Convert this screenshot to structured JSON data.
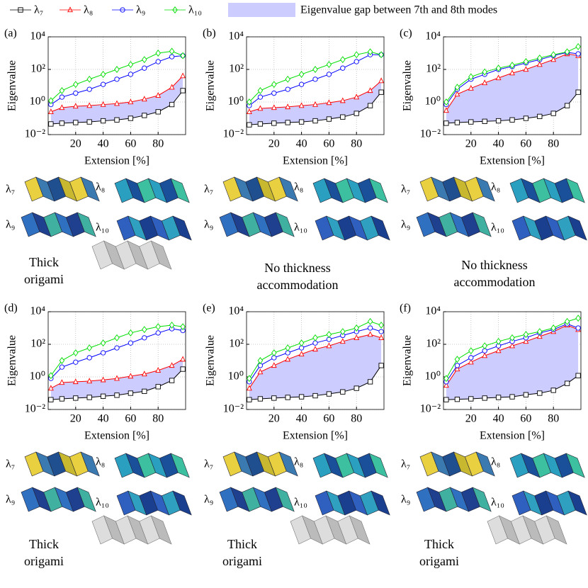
{
  "legend": {
    "gap_label": "Eigenvalue gap between 7th and 8th modes",
    "fill_color": "#ccccff"
  },
  "chart_data": [
    {
      "type": "line",
      "label": "(a)",
      "xlabel": "Extension [%]",
      "ylabel": "Eigenvalue",
      "log_y": true,
      "grid": true,
      "x": [
        2,
        10,
        20,
        30,
        40,
        50,
        60,
        70,
        80,
        90,
        98
      ],
      "xlim": [
        0,
        100
      ],
      "xticks": [
        20,
        40,
        60,
        80
      ],
      "ylim": [
        0.01,
        10000
      ],
      "yticks": [
        {
          "value": 0.01,
          "label": "10⁻²"
        },
        {
          "value": 1,
          "label": "10⁰"
        },
        {
          "value": 100,
          "label": "10²"
        },
        {
          "value": 10000,
          "label": "10⁴"
        }
      ],
      "series": [
        {
          "name": "λ₇",
          "color": "#000000",
          "marker": "square",
          "values": [
            0.045,
            0.05,
            0.055,
            0.06,
            0.07,
            0.08,
            0.1,
            0.15,
            0.25,
            0.7,
            5
          ]
        },
        {
          "name": "λ₈",
          "color": "#ff0000",
          "marker": "triangle",
          "values": [
            0.25,
            0.45,
            0.55,
            0.6,
            0.7,
            0.8,
            1,
            1.5,
            2.5,
            8,
            40
          ]
        },
        {
          "name": "λ₉",
          "color": "#0000ff",
          "marker": "circle",
          "values": [
            0.7,
            2,
            3.5,
            6,
            12,
            25,
            50,
            120,
            300,
            600,
            700
          ]
        },
        {
          "name": "λ₁₀",
          "color": "#00dd00",
          "marker": "diamond",
          "values": [
            1.2,
            5,
            12,
            25,
            50,
            100,
            200,
            400,
            1000,
            1300,
            700
          ]
        }
      ],
      "mode_labels": [
        "λ₇",
        "λ₈",
        "λ₉",
        "λ₁₀"
      ],
      "caption": [
        "Thick",
        "origami"
      ]
    },
    {
      "type": "line",
      "label": "(b)",
      "xlabel": "Extension [%]",
      "ylabel": "Eigenvalue",
      "log_y": true,
      "grid": true,
      "x": [
        2,
        10,
        20,
        30,
        40,
        50,
        60,
        70,
        80,
        90,
        98
      ],
      "xlim": [
        0,
        100
      ],
      "xticks": [
        20,
        40,
        60,
        80
      ],
      "ylim": [
        0.01,
        10000
      ],
      "yticks": [
        {
          "value": 0.01,
          "label": "10⁻²"
        },
        {
          "value": 1,
          "label": "10⁰"
        },
        {
          "value": 100,
          "label": "10²"
        },
        {
          "value": 10000,
          "label": "10⁴"
        }
      ],
      "series": [
        {
          "name": "λ₇",
          "color": "#000000",
          "marker": "square",
          "values": [
            0.04,
            0.045,
            0.05,
            0.055,
            0.06,
            0.07,
            0.09,
            0.12,
            0.2,
            0.6,
            4
          ]
        },
        {
          "name": "λ₈",
          "color": "#ff0000",
          "marker": "triangle",
          "values": [
            0.25,
            0.4,
            0.45,
            0.5,
            0.6,
            0.7,
            0.9,
            1.2,
            2,
            5,
            20
          ]
        },
        {
          "name": "λ₉",
          "color": "#0000ff",
          "marker": "circle",
          "values": [
            0.6,
            2,
            3.5,
            6,
            12,
            25,
            50,
            120,
            300,
            800,
            800
          ]
        },
        {
          "name": "λ₁₀",
          "color": "#00dd00",
          "marker": "diamond",
          "values": [
            1,
            5,
            12,
            25,
            50,
            100,
            200,
            400,
            800,
            1200,
            800
          ]
        }
      ],
      "mode_labels": [
        "λ₇",
        "λ₈",
        "λ₉",
        "λ₁₀"
      ],
      "caption": [
        "No thickness",
        "accommodation"
      ]
    },
    {
      "type": "line",
      "label": "(c)",
      "xlabel": "Extension [%]",
      "ylabel": "Eigenvalue",
      "log_y": true,
      "grid": true,
      "x": [
        2,
        10,
        20,
        30,
        40,
        50,
        60,
        70,
        80,
        90,
        98
      ],
      "xlim": [
        0,
        100
      ],
      "xticks": [
        20,
        40,
        60,
        80
      ],
      "ylim": [
        0.01,
        10000
      ],
      "yticks": [
        {
          "value": 0.01,
          "label": "10⁻²"
        },
        {
          "value": 1,
          "label": "10⁰"
        },
        {
          "value": 100,
          "label": "10²"
        },
        {
          "value": 10000,
          "label": "10⁴"
        }
      ],
      "series": [
        {
          "name": "λ₇",
          "color": "#000000",
          "marker": "square",
          "values": [
            0.05,
            0.055,
            0.06,
            0.065,
            0.07,
            0.08,
            0.1,
            0.13,
            0.2,
            0.6,
            4
          ]
        },
        {
          "name": "λ₈",
          "color": "#ff0000",
          "marker": "triangle",
          "values": [
            0.3,
            3,
            7,
            15,
            30,
            60,
            100,
            200,
            400,
            900,
            700
          ]
        },
        {
          "name": "λ₉",
          "color": "#0000ff",
          "marker": "circle",
          "values": [
            0.7,
            6,
            25,
            50,
            100,
            150,
            250,
            400,
            700,
            1100,
            900
          ]
        },
        {
          "name": "λ₁₀",
          "color": "#00dd00",
          "marker": "diamond",
          "values": [
            1,
            8,
            35,
            70,
            120,
            180,
            300,
            500,
            800,
            1200,
            2500
          ]
        }
      ],
      "mode_labels": [
        "λ₇",
        "λ₈",
        "λ₉",
        "λ₁₀"
      ],
      "caption": [
        "No thickness",
        "accommodation"
      ]
    },
    {
      "type": "line",
      "label": "(d)",
      "xlabel": "Extension [%]",
      "ylabel": "Eigenvalue",
      "log_y": true,
      "grid": true,
      "x": [
        2,
        10,
        20,
        30,
        40,
        50,
        60,
        70,
        80,
        90,
        98
      ],
      "xlim": [
        0,
        100
      ],
      "xticks": [
        20,
        40,
        60,
        80
      ],
      "ylim": [
        0.01,
        10000
      ],
      "yticks": [
        {
          "value": 0.01,
          "label": "10⁻²"
        },
        {
          "value": 1,
          "label": "10⁰"
        },
        {
          "value": 100,
          "label": "10²"
        },
        {
          "value": 10000,
          "label": "10⁴"
        }
      ],
      "series": [
        {
          "name": "λ₇",
          "color": "#000000",
          "marker": "square",
          "values": [
            0.04,
            0.045,
            0.05,
            0.055,
            0.065,
            0.075,
            0.1,
            0.13,
            0.25,
            0.6,
            3
          ]
        },
        {
          "name": "λ₈",
          "color": "#ff0000",
          "marker": "triangle",
          "values": [
            0.2,
            0.45,
            0.5,
            0.55,
            0.65,
            0.8,
            1.1,
            1.5,
            2.5,
            5,
            12
          ]
        },
        {
          "name": "λ₉",
          "color": "#0000ff",
          "marker": "circle",
          "values": [
            0.8,
            4,
            8,
            15,
            30,
            60,
            120,
            250,
            500,
            900,
            700
          ]
        },
        {
          "name": "λ₁₀",
          "color": "#00dd00",
          "marker": "diamond",
          "values": [
            1.2,
            10,
            30,
            60,
            120,
            250,
            500,
            800,
            1200,
            1500,
            1200
          ]
        }
      ],
      "mode_labels": [
        "λ₇",
        "λ₈",
        "λ₉",
        "λ₁₀"
      ],
      "caption": [
        "Thick",
        "origami"
      ]
    },
    {
      "type": "line",
      "label": "(e)",
      "xlabel": "Extension [%]",
      "ylabel": "Eigenvalue",
      "log_y": true,
      "grid": true,
      "x": [
        2,
        10,
        20,
        30,
        40,
        50,
        60,
        70,
        80,
        90,
        98
      ],
      "xlim": [
        0,
        100
      ],
      "xticks": [
        20,
        40,
        60,
        80
      ],
      "ylim": [
        0.01,
        10000
      ],
      "yticks": [
        {
          "value": 0.01,
          "label": "10⁻²"
        },
        {
          "value": 1,
          "label": "10⁰"
        },
        {
          "value": 100,
          "label": "10²"
        },
        {
          "value": 10000,
          "label": "10⁴"
        }
      ],
      "series": [
        {
          "name": "λ₇",
          "color": "#000000",
          "marker": "square",
          "values": [
            0.04,
            0.045,
            0.05,
            0.055,
            0.06,
            0.07,
            0.09,
            0.12,
            0.2,
            0.5,
            5
          ]
        },
        {
          "name": "λ₈",
          "color": "#ff0000",
          "marker": "triangle",
          "values": [
            0.2,
            2,
            5,
            12,
            25,
            50,
            80,
            150,
            250,
            400,
            250
          ]
        },
        {
          "name": "λ₉",
          "color": "#0000ff",
          "marker": "circle",
          "values": [
            0.5,
            5,
            15,
            30,
            60,
            120,
            200,
            350,
            600,
            1000,
            600
          ]
        },
        {
          "name": "λ₁₀",
          "color": "#00dd00",
          "marker": "diamond",
          "values": [
            0.8,
            10,
            30,
            60,
            120,
            250,
            400,
            600,
            1000,
            2500,
            1500
          ]
        }
      ],
      "mode_labels": [
        "λ₇",
        "λ₈",
        "λ₉",
        "λ₁₀"
      ],
      "caption": [
        "Thick",
        "origami"
      ]
    },
    {
      "type": "line",
      "label": "(f)",
      "xlabel": "Extension [%]",
      "ylabel": "Eigenvalue",
      "log_y": true,
      "grid": true,
      "x": [
        2,
        10,
        20,
        30,
        40,
        50,
        60,
        70,
        80,
        90,
        98
      ],
      "xlim": [
        0,
        100
      ],
      "xticks": [
        20,
        40,
        60,
        80
      ],
      "ylim": [
        0.01,
        10000
      ],
      "yticks": [
        {
          "value": 0.01,
          "label": "10⁻²"
        },
        {
          "value": 1,
          "label": "10⁰"
        },
        {
          "value": 100,
          "label": "10²"
        },
        {
          "value": 10000,
          "label": "10⁴"
        }
      ],
      "series": [
        {
          "name": "λ₇",
          "color": "#000000",
          "marker": "square",
          "values": [
            0.04,
            0.042,
            0.045,
            0.05,
            0.055,
            0.06,
            0.08,
            0.1,
            0.15,
            0.4,
            1.2
          ]
        },
        {
          "name": "λ₈",
          "color": "#ff0000",
          "marker": "triangle",
          "values": [
            0.3,
            3,
            8,
            20,
            40,
            80,
            150,
            300,
            600,
            1500,
            800
          ]
        },
        {
          "name": "λ₉",
          "color": "#0000ff",
          "marker": "circle",
          "values": [
            0.5,
            5,
            15,
            40,
            80,
            150,
            250,
            500,
            800,
            1800,
            1000
          ]
        },
        {
          "name": "λ₁₀",
          "color": "#00dd00",
          "marker": "diamond",
          "values": [
            0.8,
            12,
            40,
            80,
            150,
            250,
            400,
            600,
            1000,
            2500,
            4000
          ]
        }
      ],
      "mode_labels": [
        "λ₇",
        "λ₈",
        "λ₉",
        "λ₁₀"
      ],
      "caption": [
        "Thick",
        "origami"
      ]
    }
  ]
}
